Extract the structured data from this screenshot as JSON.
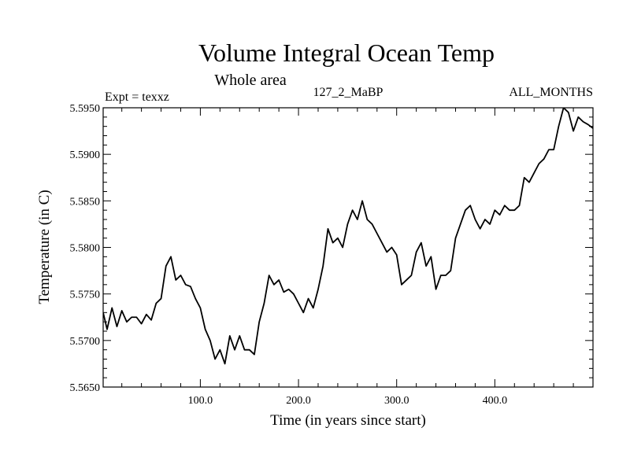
{
  "chart_data": {
    "type": "line",
    "title": "Volume Integral Ocean Temp",
    "subtitle": "Whole area",
    "experiment": "Expt = texxz",
    "run_label": "127_2_MaBP",
    "period_label": "ALL_MONTHS",
    "xlabel": "Time (in years since start)",
    "ylabel": "Temperature (in C)",
    "xlim": [
      1,
      500
    ],
    "ylim": [
      5.565,
      5.595
    ],
    "xticks": [
      {
        "value": 100,
        "label": "100.0"
      },
      {
        "value": 200,
        "label": "200.0"
      },
      {
        "value": 300,
        "label": "300.0"
      },
      {
        "value": 400,
        "label": "400.0"
      }
    ],
    "yticks": [
      {
        "value": 5.565,
        "label": "5.5650"
      },
      {
        "value": 5.57,
        "label": "5.5700"
      },
      {
        "value": 5.575,
        "label": "5.5750"
      },
      {
        "value": 5.58,
        "label": "5.5800"
      },
      {
        "value": 5.585,
        "label": "5.5850"
      },
      {
        "value": 5.59,
        "label": "5.5900"
      },
      {
        "value": 5.595,
        "label": "5.5950"
      }
    ],
    "series": [
      {
        "name": "Volume integral ocean temperature",
        "x": [
          1,
          5,
          10,
          15,
          20,
          25,
          30,
          35,
          40,
          45,
          50,
          55,
          60,
          65,
          70,
          75,
          80,
          85,
          90,
          95,
          100,
          105,
          110,
          115,
          120,
          125,
          130,
          135,
          140,
          145,
          150,
          155,
          160,
          165,
          170,
          175,
          180,
          185,
          190,
          195,
          200,
          205,
          210,
          215,
          220,
          225,
          230,
          235,
          240,
          245,
          250,
          255,
          260,
          265,
          270,
          275,
          280,
          285,
          290,
          295,
          300,
          305,
          310,
          315,
          320,
          325,
          330,
          335,
          340,
          345,
          350,
          355,
          360,
          365,
          370,
          375,
          380,
          385,
          390,
          395,
          400,
          405,
          410,
          415,
          420,
          425,
          430,
          435,
          440,
          445,
          450,
          455,
          460,
          465,
          470,
          475,
          480,
          485,
          490,
          495,
          500
        ],
        "values": [
          5.573,
          5.5712,
          5.5735,
          5.5715,
          5.5732,
          5.572,
          5.5725,
          5.5725,
          5.5718,
          5.5728,
          5.5722,
          5.574,
          5.5745,
          5.578,
          5.579,
          5.5765,
          5.577,
          5.576,
          5.5758,
          5.5745,
          5.5735,
          5.5712,
          5.57,
          5.568,
          5.569,
          5.5675,
          5.5705,
          5.569,
          5.5705,
          5.569,
          5.569,
          5.5685,
          5.572,
          5.574,
          5.577,
          5.576,
          5.5765,
          5.5752,
          5.5755,
          5.575,
          5.574,
          5.573,
          5.5745,
          5.5735,
          5.5755,
          5.578,
          5.582,
          5.5805,
          5.581,
          5.58,
          5.5825,
          5.584,
          5.583,
          5.585,
          5.583,
          5.5825,
          5.5815,
          5.5805,
          5.5795,
          5.58,
          5.5792,
          5.576,
          5.5765,
          5.577,
          5.5795,
          5.5805,
          5.578,
          5.579,
          5.5755,
          5.577,
          5.577,
          5.5775,
          5.581,
          5.5825,
          5.584,
          5.5845,
          5.583,
          5.582,
          5.583,
          5.5825,
          5.584,
          5.5835,
          5.5845,
          5.584,
          5.584,
          5.5845,
          5.5875,
          5.587,
          5.588,
          5.589,
          5.5895,
          5.5905,
          5.5905,
          5.593,
          5.595,
          5.5945,
          5.5925,
          5.594,
          5.5935,
          5.5932,
          5.5928
        ]
      }
    ]
  }
}
